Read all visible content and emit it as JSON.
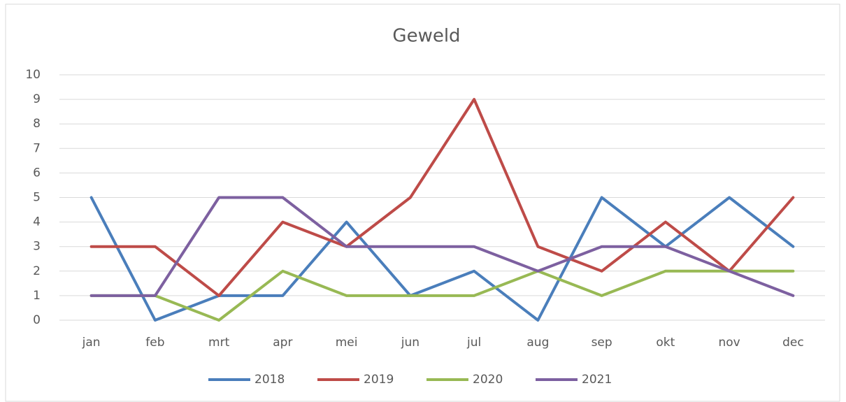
{
  "chart_data": {
    "type": "line",
    "title": "Geweld",
    "categories": [
      "jan",
      "feb",
      "mrt",
      "apr",
      "mei",
      "jun",
      "jul",
      "aug",
      "sep",
      "okt",
      "nov",
      "dec"
    ],
    "series": [
      {
        "name": "2018",
        "color": "#4a7ebb",
        "values": [
          5,
          0,
          1,
          1,
          4,
          1,
          2,
          0,
          5,
          3,
          5,
          3
        ]
      },
      {
        "name": "2019",
        "color": "#be4b48",
        "values": [
          3,
          3,
          1,
          4,
          3,
          5,
          9,
          3,
          2,
          4,
          2,
          5
        ]
      },
      {
        "name": "2020",
        "color": "#98b954",
        "values": [
          1,
          1,
          0,
          2,
          1,
          1,
          1,
          2,
          1,
          2,
          2,
          2
        ]
      },
      {
        "name": "2021",
        "color": "#7d60a0",
        "values": [
          1,
          1,
          5,
          5,
          3,
          3,
          3,
          2,
          3,
          3,
          2,
          1
        ]
      }
    ],
    "ylim": [
      0,
      10
    ],
    "yticks": [
      0,
      1,
      2,
      3,
      4,
      5,
      6,
      7,
      8,
      9,
      10
    ],
    "grid": true,
    "legend": "bottom"
  }
}
